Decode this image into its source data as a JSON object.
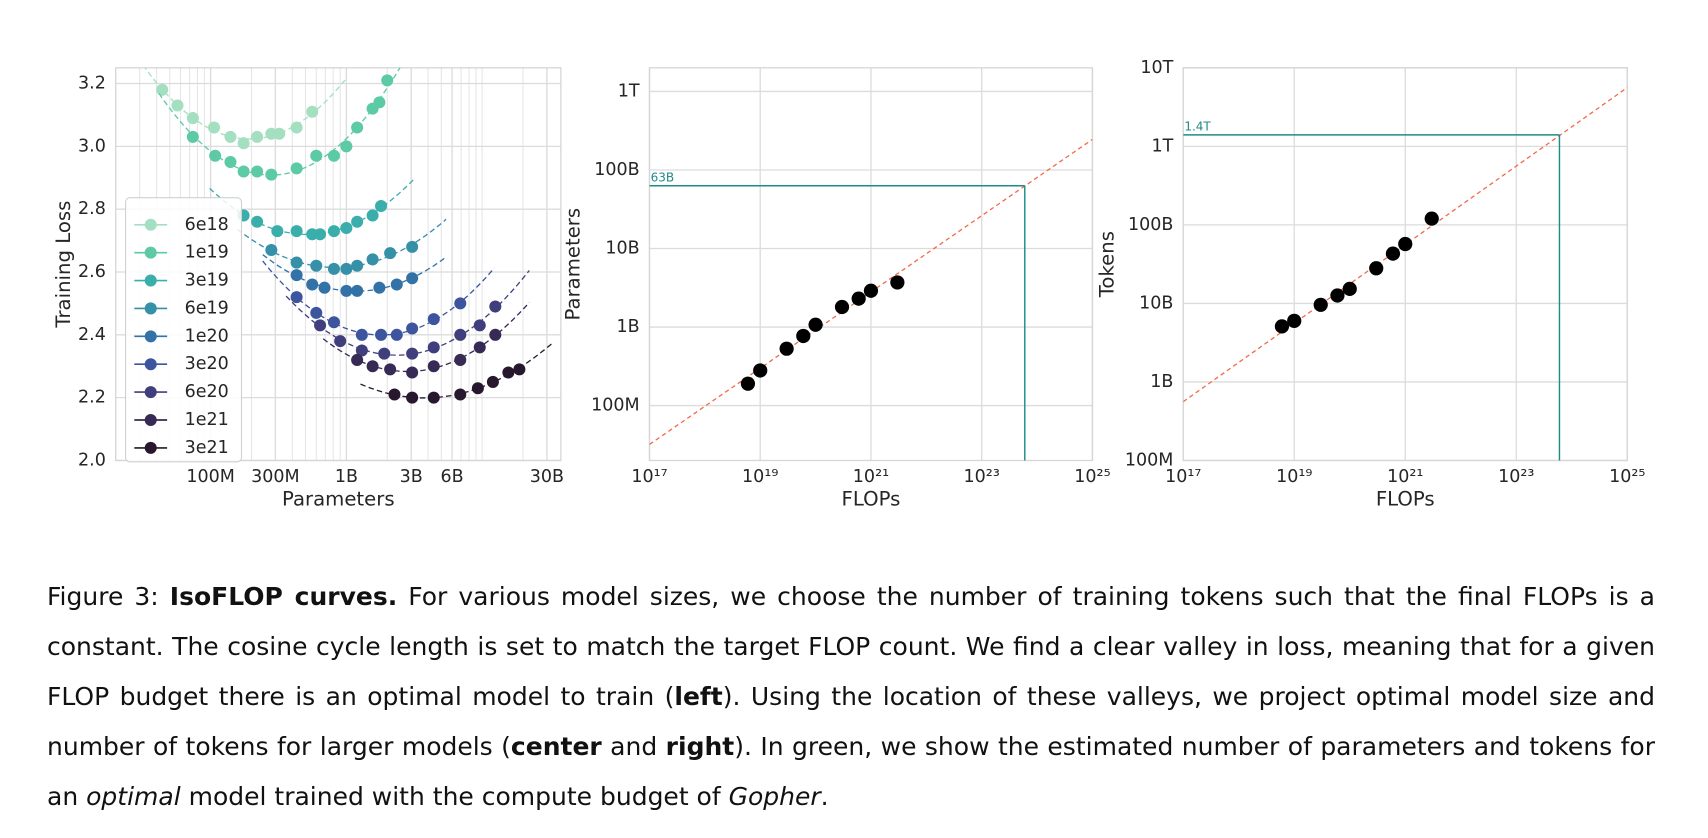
{
  "chart_data": [
    {
      "type": "line",
      "x_label": "Parameters",
      "y_label": "Training Loss",
      "xscale": "log",
      "grid": true,
      "minor_grid": true,
      "legend": "center left",
      "xlim": [
        20000000.0,
        38000000000.0
      ],
      "ylim": [
        2.0,
        3.25
      ],
      "xticks": [
        {
          "value": 100000000.0,
          "label": "100M"
        },
        {
          "value": 300000000.0,
          "label": "300M"
        },
        {
          "value": 1000000000.0,
          "label": "1B"
        },
        {
          "value": 3000000000.0,
          "label": "3B"
        },
        {
          "value": 6000000000.0,
          "label": "6B"
        },
        {
          "value": 30000000000.0,
          "label": "30B"
        }
      ],
      "yticks": [
        {
          "value": 2.0,
          "label": "2.0"
        },
        2.2,
        2.4,
        2.6,
        2.8,
        {
          "value": 3.0,
          "label": "3.0"
        },
        3.2
      ],
      "series": [
        {
          "name": "6e18",
          "color": "#a3dfc0",
          "x": [
            44000000.0,
            57000000.0,
            74000000.0,
            106000000.0,
            140000000.0,
            175000000.0,
            220000000.0,
            280000000.0,
            320000000.0,
            430000000.0,
            560000000.0
          ],
          "values": [
            3.18,
            3.13,
            3.09,
            3.06,
            3.03,
            3.01,
            3.03,
            3.04,
            3.04,
            3.06,
            3.11
          ]
        },
        {
          "name": "1e19",
          "color": "#5ccaa4",
          "x": [
            74000000.0,
            108000000.0,
            140000000.0,
            175000000.0,
            220000000.0,
            280000000.0,
            430000000.0,
            600000000.0,
            810000000.0,
            1000000000.0,
            1200000000.0,
            1560000000.0,
            1750000000.0,
            2000000000.0
          ],
          "values": [
            3.03,
            2.97,
            2.95,
            2.92,
            2.92,
            2.91,
            2.93,
            2.97,
            2.97,
            3.0,
            3.06,
            3.12,
            3.14,
            3.21
          ]
        },
        {
          "name": "3e19",
          "color": "#3aaeab",
          "x": [
            175000000.0,
            220000000.0,
            310000000.0,
            430000000.0,
            560000000.0,
            640000000.0,
            810000000.0,
            1000000000.0,
            1200000000.0,
            1560000000.0,
            1800000000.0
          ],
          "values": [
            2.78,
            2.76,
            2.73,
            2.73,
            2.72,
            2.72,
            2.73,
            2.74,
            2.76,
            2.78,
            2.81
          ]
        },
        {
          "name": "6e19",
          "color": "#3590a8",
          "x": [
            280000000.0,
            430000000.0,
            600000000.0,
            810000000.0,
            1000000000.0,
            1200000000.0,
            1560000000.0,
            2100000000.0,
            3050000000.0
          ],
          "values": [
            2.67,
            2.63,
            2.62,
            2.61,
            2.61,
            2.62,
            2.64,
            2.66,
            2.68
          ]
        },
        {
          "name": "1e20",
          "color": "#3372a6",
          "x": [
            430000000.0,
            560000000.0,
            690000000.0,
            1000000000.0,
            1200000000.0,
            1750000000.0,
            2350000000.0,
            3050000000.0
          ],
          "values": [
            2.59,
            2.56,
            2.55,
            2.54,
            2.54,
            2.55,
            2.56,
            2.58
          ]
        },
        {
          "name": "3e20",
          "color": "#3d559f",
          "x": [
            430000000.0,
            600000000.0,
            810000000.0,
            1300000000.0,
            1800000000.0,
            2350000000.0,
            3050000000.0,
            4400000000.0,
            6900000000.0
          ],
          "values": [
            2.52,
            2.47,
            2.44,
            2.4,
            2.4,
            2.4,
            2.42,
            2.45,
            2.5
          ]
        },
        {
          "name": "6e20",
          "color": "#403e7c",
          "x": [
            640000000.0,
            900000000.0,
            1300000000.0,
            1900000000.0,
            3050000000.0,
            4400000000.0,
            6900000000.0,
            9600000000.0,
            12500000000.0
          ],
          "values": [
            2.43,
            2.38,
            2.35,
            2.34,
            2.34,
            2.36,
            2.4,
            2.43,
            2.49
          ]
        },
        {
          "name": "1e21",
          "color": "#372a55",
          "x": [
            1200000000.0,
            1560000000.0,
            2100000000.0,
            3050000000.0,
            4400000000.0,
            6900000000.0,
            9600000000.0,
            12500000000.0
          ],
          "values": [
            2.32,
            2.3,
            2.29,
            2.28,
            2.3,
            2.32,
            2.36,
            2.4
          ]
        },
        {
          "name": "3e21",
          "color": "#27182e",
          "x": [
            2260000000.0,
            3050000000.0,
            4400000000.0,
            6900000000.0,
            9300000000.0,
            12000000000.0,
            15600000000.0,
            18800000000.0
          ],
          "values": [
            2.21,
            2.2,
            2.2,
            2.21,
            2.23,
            2.25,
            2.28,
            2.29
          ]
        }
      ]
    },
    {
      "type": "scatter",
      "x_label": "FLOPs",
      "y_label": "Parameters",
      "xscale": "log",
      "yscale": "log",
      "grid": true,
      "color": "#000000",
      "xlim": [
        1e+17,
        1e+25
      ],
      "ylim": [
        20000000.0,
        2000000000000.0
      ],
      "xticks": [
        {
          "value": 1e+17,
          "label": "10¹⁷"
        },
        {
          "value": 1e+19,
          "label": "10¹⁹"
        },
        {
          "value": 1e+21,
          "label": "10²¹"
        },
        {
          "value": 1e+23,
          "label": "10²³"
        },
        {
          "value": 1e+25,
          "label": "10²⁵"
        }
      ],
      "yticks": [
        {
          "value": 100000000.0,
          "label": "100M"
        },
        {
          "value": 1000000000.0,
          "label": "1B"
        },
        {
          "value": 10000000000.0,
          "label": "10B"
        },
        {
          "value": 100000000000.0,
          "label": "100B"
        },
        {
          "value": 1000000000000.0,
          "label": "1T"
        }
      ],
      "x": [
        6e+18,
        1e+19,
        3e+19,
        6e+19,
        1e+20,
        3e+20,
        6e+20,
        1e+21,
        3e+21
      ],
      "values": [
        190000000.0,
        280000000.0,
        530000000.0,
        770000000.0,
        1070000000.0,
        1800000000.0,
        2300000000.0,
        2900000000.0,
        3700000000.0
      ],
      "fit_line": {
        "color": "#f26b4a",
        "x": [
          1e+17,
          1e+25
        ],
        "values": [
          32000000.0,
          245000000000.0
        ]
      },
      "projection": {
        "color": "#1f8a8a",
        "x": 6e+23,
        "y": 63000000000.0,
        "label": "63B"
      }
    },
    {
      "type": "scatter",
      "x_label": "FLOPs",
      "y_label": "Tokens",
      "xscale": "log",
      "yscale": "log",
      "grid": true,
      "color": "#000000",
      "xlim": [
        1e+17,
        1e+25
      ],
      "ylim": [
        100000000.0,
        10000000000000.0
      ],
      "xticks": [
        {
          "value": 1e+17,
          "label": "10¹⁷"
        },
        {
          "value": 1e+19,
          "label": "10¹⁹"
        },
        {
          "value": 1e+21,
          "label": "10²¹"
        },
        {
          "value": 1e+23,
          "label": "10²³"
        },
        {
          "value": 1e+25,
          "label": "10²⁵"
        }
      ],
      "yticks": [
        {
          "value": 100000000.0,
          "label": "100M"
        },
        {
          "value": 1000000000.0,
          "label": "1B"
        },
        {
          "value": 10000000000.0,
          "label": "10B"
        },
        {
          "value": 100000000000.0,
          "label": "100B"
        },
        {
          "value": 1000000000000.0,
          "label": "1T"
        },
        {
          "value": 10000000000000.0,
          "label": "10T"
        }
      ],
      "x": [
        6e+18,
        1e+19,
        3e+19,
        6e+19,
        1e+20,
        3e+20,
        6e+20,
        1e+21,
        3e+21
      ],
      "values": [
        5100000000.0,
        6000000000.0,
        9600000000.0,
        12600000000.0,
        15300000000.0,
        28000000000.0,
        43000000000.0,
        57000000000.0,
        120000000000.0
      ],
      "fit_line": {
        "color": "#f26b4a",
        "x": [
          1e+17,
          1e+25
        ],
        "values": [
          560000000.0,
          5600000000000.0
        ]
      },
      "projection": {
        "color": "#1f8a8a",
        "x": 6e+23,
        "y": 1400000000000.0,
        "label": "1.4T"
      }
    }
  ],
  "caption": [
    {
      "text": "Figure 3: "
    },
    {
      "text": "IsoFLOP curves.",
      "bold": true
    },
    {
      "text": " For various model sizes, we choose the number of training tokens such that the final FLOPs is a constant. The cosine cycle length is set to match the target FLOP count. We find a clear valley in loss, meaning that for a given FLOP budget there is an optimal model to train ("
    },
    {
      "text": "left",
      "bold": true
    },
    {
      "text": "). Using the location of these valleys, we project optimal model size and number of tokens for larger models ("
    },
    {
      "text": "center",
      "bold": true
    },
    {
      "text": " and "
    },
    {
      "text": "right",
      "bold": true
    },
    {
      "text": "). In green, we show the estimated number of parameters and tokens for an "
    },
    {
      "text": "optimal",
      "italic": true
    },
    {
      "text": " model trained with the compute budget of "
    },
    {
      "text": "Gopher",
      "italic": true
    },
    {
      "text": "."
    }
  ]
}
